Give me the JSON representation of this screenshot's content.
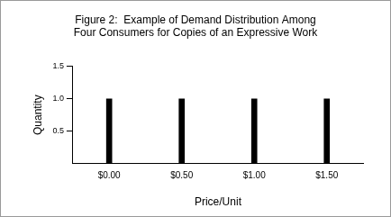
{
  "chart_data": {
    "type": "bar",
    "title": [
      "Figure 2:  Example of Demand Distribution Among",
      "Four Consumers for Copies of an Expressive Work"
    ],
    "x_label": "Price/Unit",
    "y_label": "Quantity",
    "categories": [
      "$0.00",
      "$0.50",
      "$1.00",
      "$1.50"
    ],
    "values": [
      1,
      1,
      1,
      1
    ],
    "color": "#000000",
    "ylim": [
      0,
      1.5
    ],
    "yticks": [
      0.5,
      {
        "value": 1,
        "label": "1.0"
      },
      1.5
    ],
    "grid": false
  }
}
